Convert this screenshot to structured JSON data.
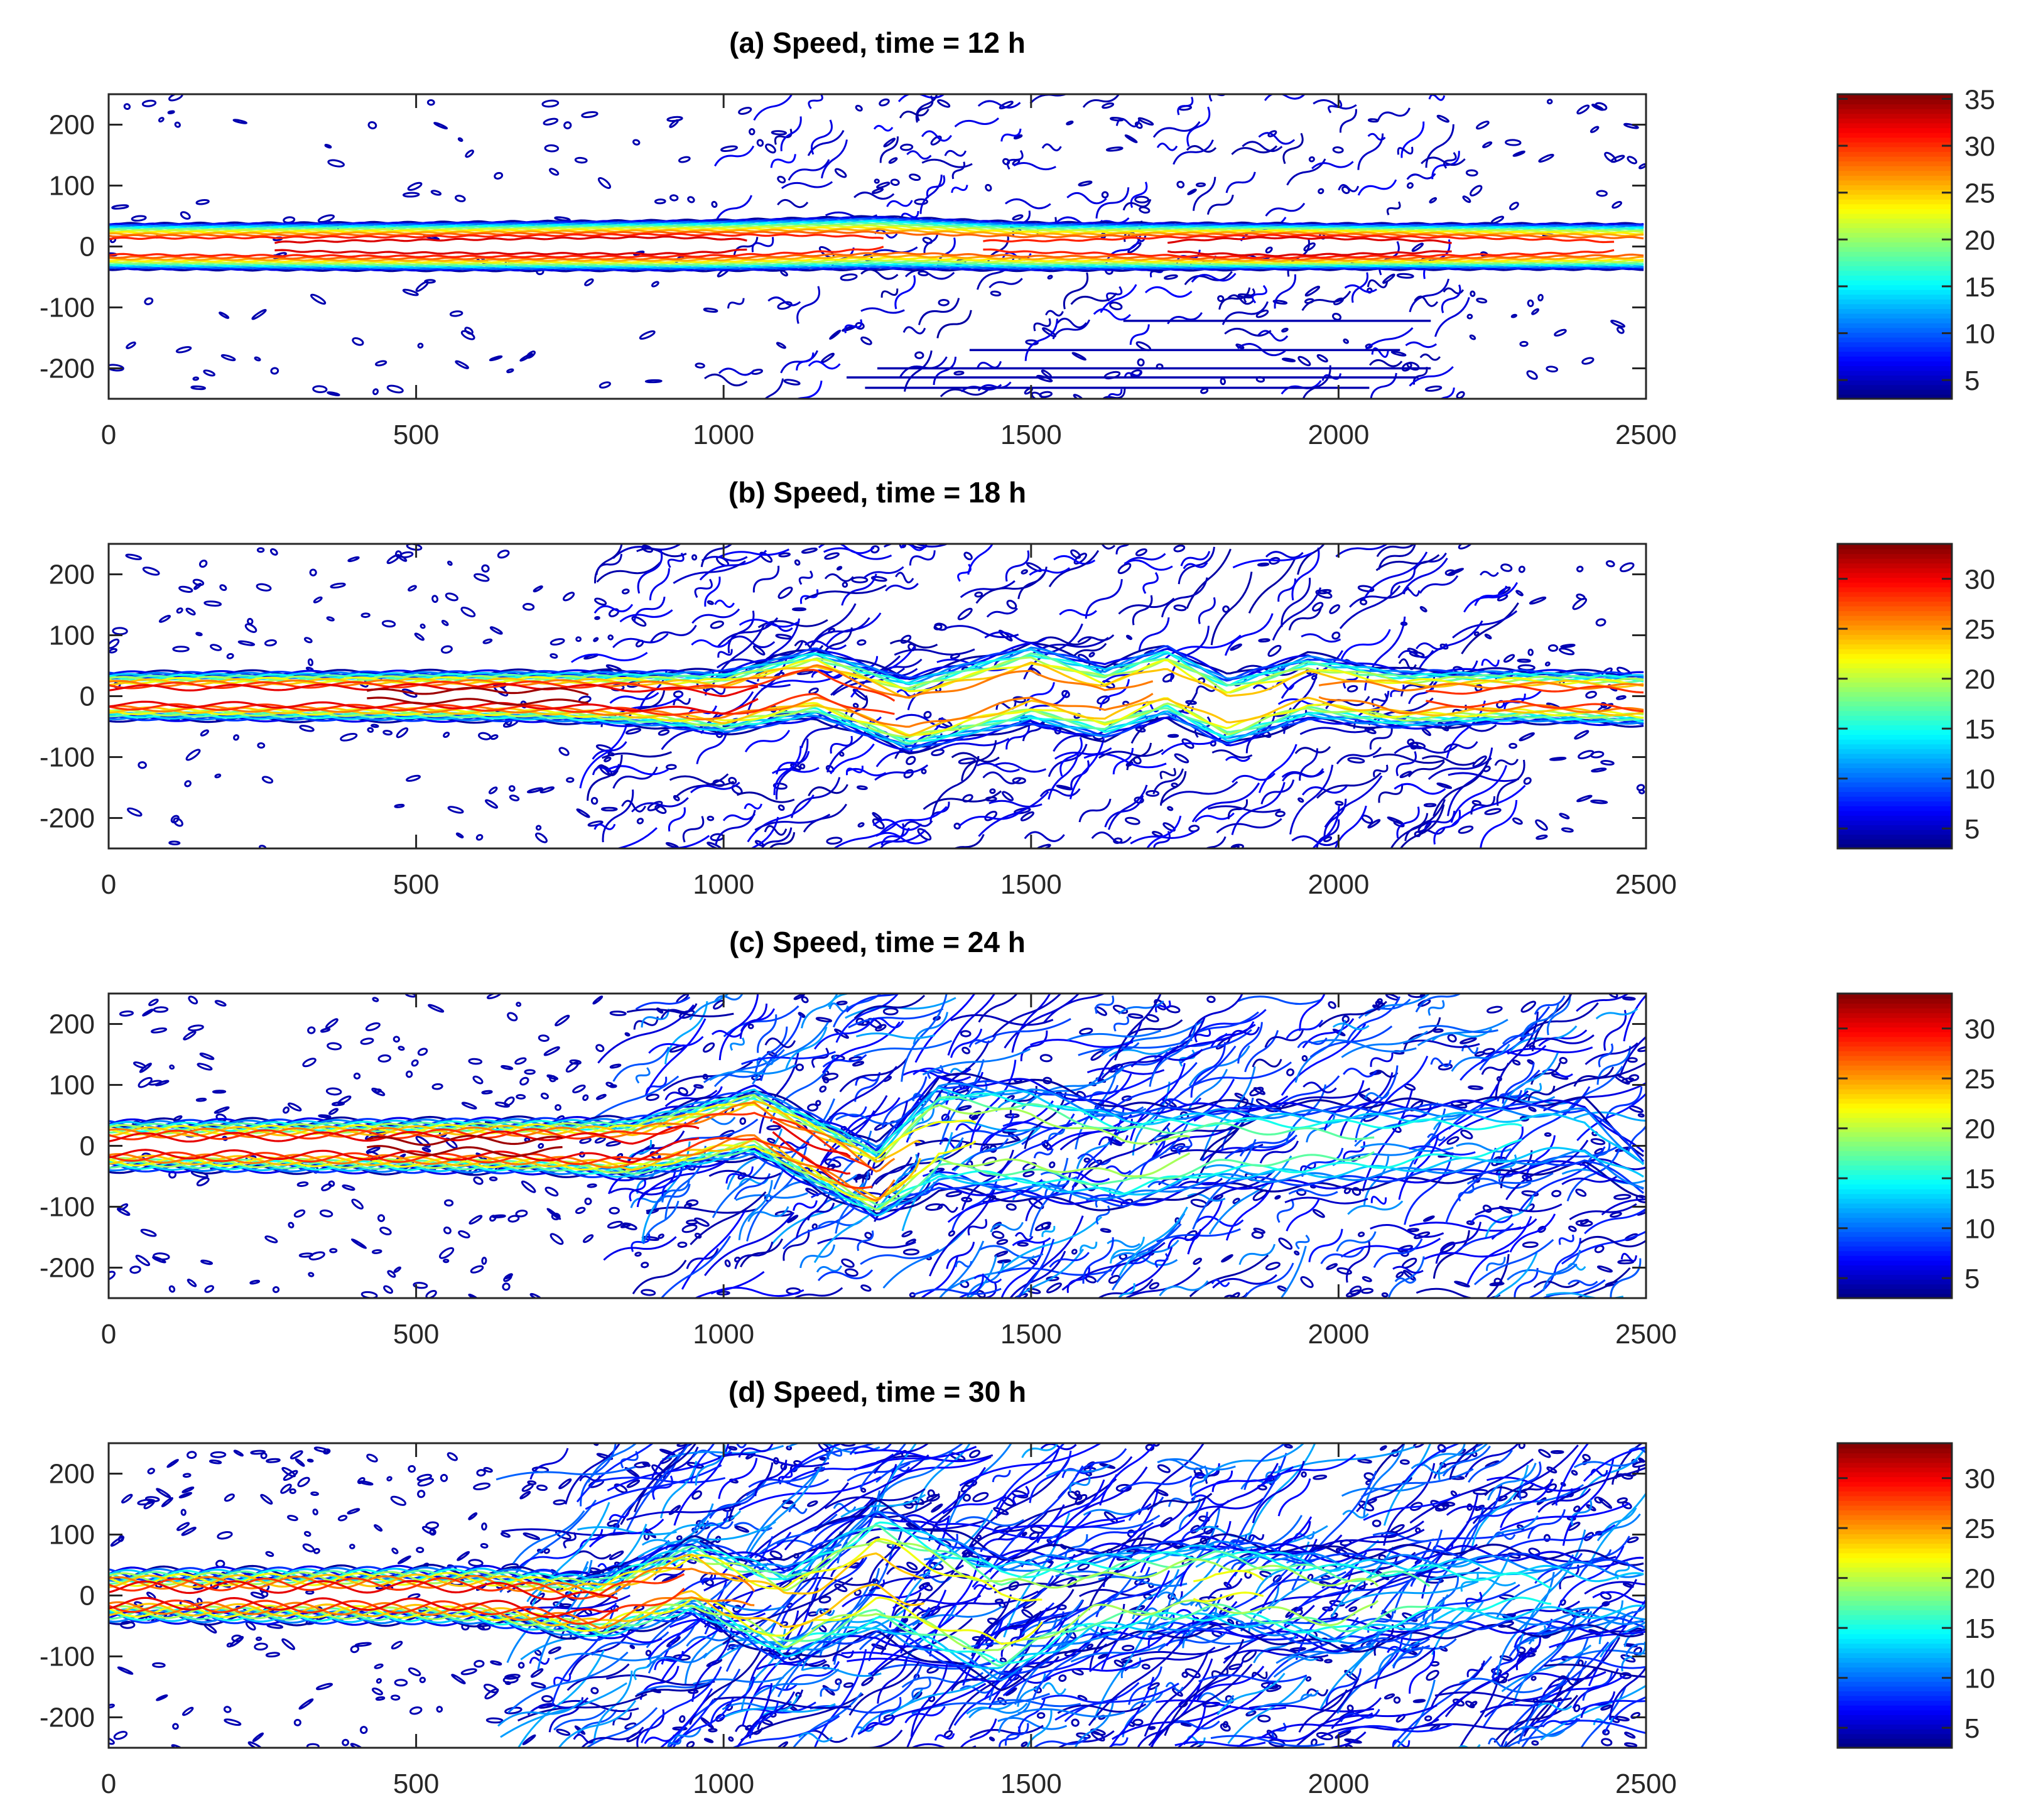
{
  "figure": {
    "caption_prefix": "Speed, time ="
  },
  "chart_data": [
    {
      "type": "contour",
      "title": "(a) Speed, time = 12 h",
      "time_h": 12,
      "xlim": [
        0,
        2500
      ],
      "ylim": [
        -250,
        250
      ],
      "xticks": [
        0,
        500,
        1000,
        1500,
        2000,
        2500
      ],
      "yticks": [
        200,
        100,
        0,
        -100,
        -200
      ],
      "colorbar": {
        "ticks": [
          35,
          30,
          25,
          20,
          15,
          10,
          5
        ],
        "range": [
          3,
          35.5
        ]
      },
      "jet": {
        "envelope": [
          [
            0,
            0,
            38
          ],
          [
            500,
            0,
            40
          ],
          [
            1000,
            2,
            42
          ],
          [
            1250,
            6,
            44
          ],
          [
            1500,
            0,
            40
          ],
          [
            2000,
            0,
            38
          ],
          [
            2500,
            0,
            38
          ]
        ],
        "core_speed": [
          [
            0,
            32
          ],
          [
            900,
            34
          ],
          [
            1300,
            30
          ],
          [
            1600,
            31
          ],
          [
            1900,
            35
          ],
          [
            2500,
            30
          ]
        ]
      },
      "turbulence_region": [
        1000,
        2200
      ],
      "streaks": [
        [
          1650,
          2150,
          -122
        ],
        [
          1400,
          2100,
          -170
        ],
        [
          1250,
          2150,
          -200
        ],
        [
          1200,
          2130,
          -215
        ],
        [
          1230,
          2050,
          -232
        ]
      ]
    },
    {
      "type": "contour",
      "title": "(b) Speed, time = 18 h",
      "time_h": 18,
      "xlim": [
        0,
        2500
      ],
      "ylim": [
        -250,
        250
      ],
      "xticks": [
        0,
        500,
        1000,
        1500,
        2000,
        2500
      ],
      "yticks": [
        200,
        100,
        0,
        -100,
        -200
      ],
      "colorbar": {
        "ticks": [
          30,
          25,
          20,
          15,
          10,
          5
        ],
        "range": [
          3,
          33.5
        ]
      },
      "jet": {
        "envelope": [
          [
            0,
            0,
            38
          ],
          [
            700,
            0,
            40
          ],
          [
            900,
            -5,
            45
          ],
          [
            1000,
            -10,
            52
          ],
          [
            1150,
            22,
            58
          ],
          [
            1300,
            -30,
            62
          ],
          [
            1500,
            20,
            68
          ],
          [
            1620,
            -10,
            62
          ],
          [
            1720,
            25,
            60
          ],
          [
            1820,
            -25,
            58
          ],
          [
            1950,
            15,
            55
          ],
          [
            2100,
            -5,
            48
          ],
          [
            2300,
            0,
            42
          ],
          [
            2500,
            -5,
            42
          ]
        ],
        "core_speed": [
          [
            0,
            32
          ],
          [
            700,
            33
          ],
          [
            900,
            32
          ],
          [
            1100,
            30
          ],
          [
            1300,
            28
          ],
          [
            1500,
            27
          ],
          [
            1700,
            26
          ],
          [
            1900,
            25
          ],
          [
            2100,
            28
          ],
          [
            2500,
            30
          ]
        ]
      },
      "turbulence_region": [
        800,
        2300
      ],
      "streaks": []
    },
    {
      "type": "contour",
      "title": "(c) Speed, time = 24 h",
      "time_h": 24,
      "xlim": [
        0,
        2500
      ],
      "ylim": [
        -250,
        250
      ],
      "xticks": [
        0,
        500,
        1000,
        1500,
        2000,
        2500
      ],
      "yticks": [
        200,
        100,
        0,
        -100,
        -200
      ],
      "colorbar": {
        "ticks": [
          30,
          25,
          20,
          15,
          10,
          5
        ],
        "range": [
          3,
          33.5
        ]
      },
      "jet": {
        "envelope": [
          [
            0,
            0,
            38
          ],
          [
            700,
            0,
            42
          ],
          [
            850,
            -5,
            48
          ],
          [
            1050,
            40,
            55
          ],
          [
            1250,
            -60,
            60
          ],
          [
            1350,
            20,
            95
          ],
          [
            1500,
            10,
            100
          ],
          [
            1650,
            -20,
            85
          ],
          [
            1800,
            0,
            70
          ],
          [
            2000,
            0,
            70
          ],
          [
            2200,
            10,
            65
          ],
          [
            2400,
            20,
            55
          ],
          [
            2500,
            -50,
            35
          ]
        ],
        "core_speed": [
          [
            0,
            32
          ],
          [
            700,
            33
          ],
          [
            1000,
            30
          ],
          [
            1200,
            31
          ],
          [
            1350,
            22
          ],
          [
            1500,
            21
          ],
          [
            1700,
            20
          ],
          [
            1900,
            18
          ],
          [
            2100,
            17
          ],
          [
            2300,
            15
          ],
          [
            2500,
            13
          ]
        ]
      },
      "turbulence_region": [
        850,
        2500
      ],
      "streaks": []
    },
    {
      "type": "contour",
      "title": "(d) Speed, time = 30 h",
      "time_h": 30,
      "xlim": [
        0,
        2500
      ],
      "ylim": [
        -250,
        250
      ],
      "xticks": [
        0,
        500,
        1000,
        1500,
        2000,
        2500
      ],
      "yticks": [
        200,
        100,
        0,
        -100,
        -200
      ],
      "colorbar": {
        "ticks": [
          30,
          25,
          20,
          15,
          10,
          5
        ],
        "range": [
          3,
          33.5
        ]
      },
      "jet": {
        "envelope": [
          [
            0,
            0,
            38
          ],
          [
            600,
            0,
            42
          ],
          [
            800,
            -20,
            50
          ],
          [
            950,
            30,
            60
          ],
          [
            1100,
            -30,
            80
          ],
          [
            1250,
            40,
            110
          ],
          [
            1450,
            -40,
            110
          ],
          [
            1600,
            0,
            80
          ],
          [
            1800,
            20,
            75
          ],
          [
            2000,
            -10,
            80
          ],
          [
            2200,
            10,
            70
          ],
          [
            2500,
            0,
            60
          ]
        ],
        "core_speed": [
          [
            0,
            32
          ],
          [
            600,
            32
          ],
          [
            800,
            31
          ],
          [
            1000,
            27
          ],
          [
            1150,
            24
          ],
          [
            1300,
            24
          ],
          [
            1450,
            23
          ],
          [
            1600,
            20
          ],
          [
            1800,
            22
          ],
          [
            2000,
            21
          ],
          [
            2200,
            16
          ],
          [
            2500,
            14
          ]
        ]
      },
      "turbulence_region": [
        700,
        2500
      ],
      "streaks": []
    }
  ]
}
